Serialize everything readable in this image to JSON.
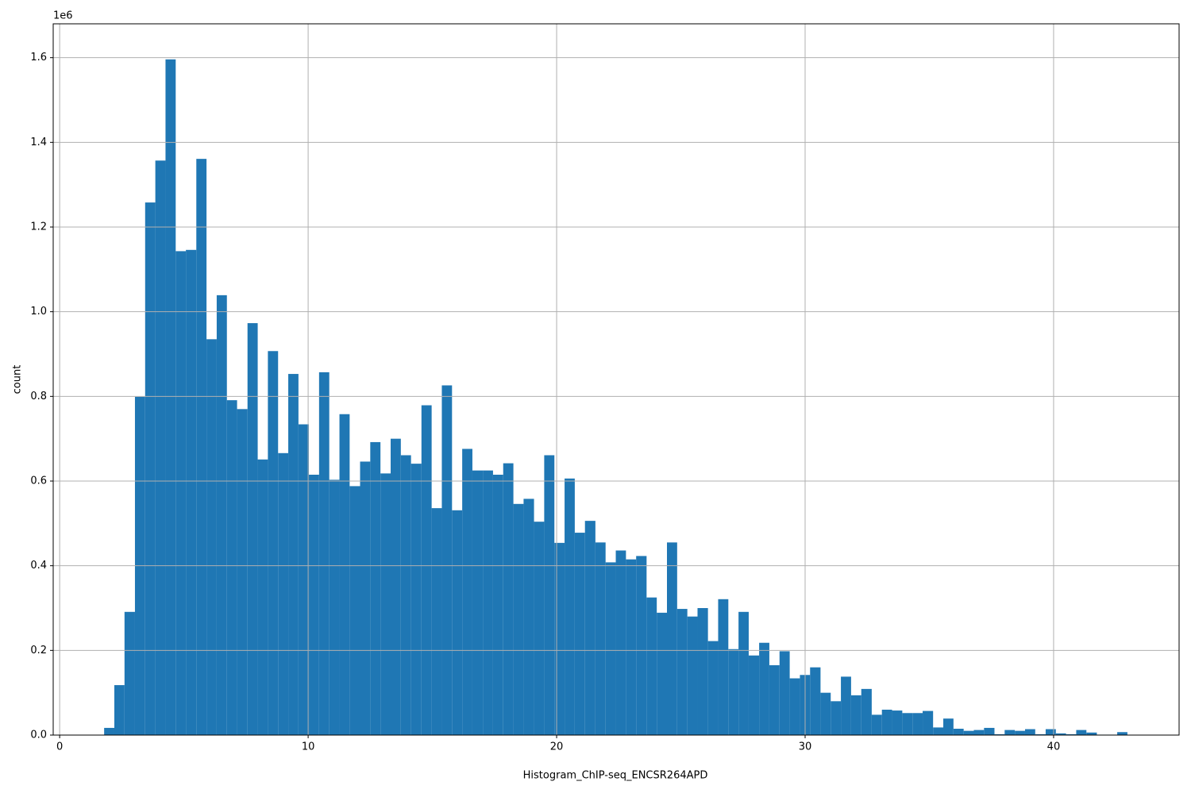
{
  "chart_data": {
    "type": "histogram",
    "x_label": "Histogram_ChIP-seq_ENCSR264APD",
    "y_label": "count",
    "y_offset_label": "1e6",
    "color": "#1f77b4",
    "grid": true,
    "xlim": [
      -0.26,
      45.05
    ],
    "ylim": [
      0,
      1.68
    ],
    "xticks": [
      0,
      10,
      20,
      30,
      40
    ],
    "yticks": [
      {
        "value": 0,
        "label": "0.0"
      },
      0.2,
      0.4,
      0.6,
      0.8,
      {
        "value": 1,
        "label": "1.0"
      },
      1.2,
      1.4,
      1.6
    ],
    "bins": [
      1.79,
      2.2,
      2.61,
      3.03,
      3.44,
      3.85,
      4.26,
      4.67,
      5.08,
      5.5,
      5.91,
      6.32,
      6.73,
      7.14,
      7.56,
      7.97,
      8.38,
      8.79,
      9.2,
      9.61,
      10.03,
      10.44,
      10.85,
      11.26,
      11.67,
      12.09,
      12.5,
      12.91,
      13.32,
      13.73,
      14.14,
      14.56,
      14.97,
      15.38,
      15.79,
      16.2,
      16.61,
      17.03,
      17.44,
      17.85,
      18.26,
      18.67,
      19.09,
      19.5,
      19.91,
      20.32,
      20.73,
      21.14,
      21.56,
      21.97,
      22.38,
      22.79,
      23.2,
      23.62,
      24.03,
      24.44,
      24.85,
      25.26,
      25.67,
      26.09,
      26.5,
      26.91,
      27.32,
      27.73,
      28.15,
      28.56,
      28.97,
      29.38,
      29.79,
      30.2,
      30.62,
      31.03,
      31.44,
      31.85,
      32.26,
      32.68,
      33.09,
      33.5,
      33.91,
      34.32,
      34.73,
      35.15,
      35.56,
      35.97,
      36.38,
      36.79,
      37.2,
      37.62,
      38.03,
      38.44,
      38.85,
      39.26,
      39.68,
      40.09,
      40.5,
      40.91,
      41.32,
      41.74,
      42.15,
      42.56,
      42.97
    ],
    "values": [
      0.017,
      0.118,
      0.291,
      0.799,
      1.258,
      1.357,
      1.596,
      1.143,
      1.146,
      1.361,
      0.935,
      1.039,
      0.791,
      0.77,
      0.973,
      0.651,
      0.907,
      0.666,
      0.853,
      0.734,
      0.615,
      0.857,
      0.603,
      0.758,
      0.588,
      0.646,
      0.692,
      0.618,
      0.7,
      0.661,
      0.641,
      0.779,
      0.536,
      0.826,
      0.531,
      0.676,
      0.625,
      0.625,
      0.615,
      0.642,
      0.546,
      0.558,
      0.504,
      0.661,
      0.454,
      0.606,
      0.478,
      0.506,
      0.455,
      0.408,
      0.436,
      0.415,
      0.423,
      0.325,
      0.289,
      0.455,
      0.298,
      0.28,
      0.3,
      0.222,
      0.321,
      0.203,
      0.291,
      0.188,
      0.218,
      0.165,
      0.198,
      0.134,
      0.142,
      0.16,
      0.1,
      0.08,
      0.138,
      0.094,
      0.109,
      0.048,
      0.06,
      0.058,
      0.052,
      0.052,
      0.057,
      0.018,
      0.039,
      0.015,
      0.01,
      0.012,
      0.017,
      0.002,
      0.012,
      0.01,
      0.014,
      0.002,
      0.014,
      0.004,
      0.002,
      0.012,
      0.006,
      0.001,
      0.001,
      0.007
    ]
  }
}
